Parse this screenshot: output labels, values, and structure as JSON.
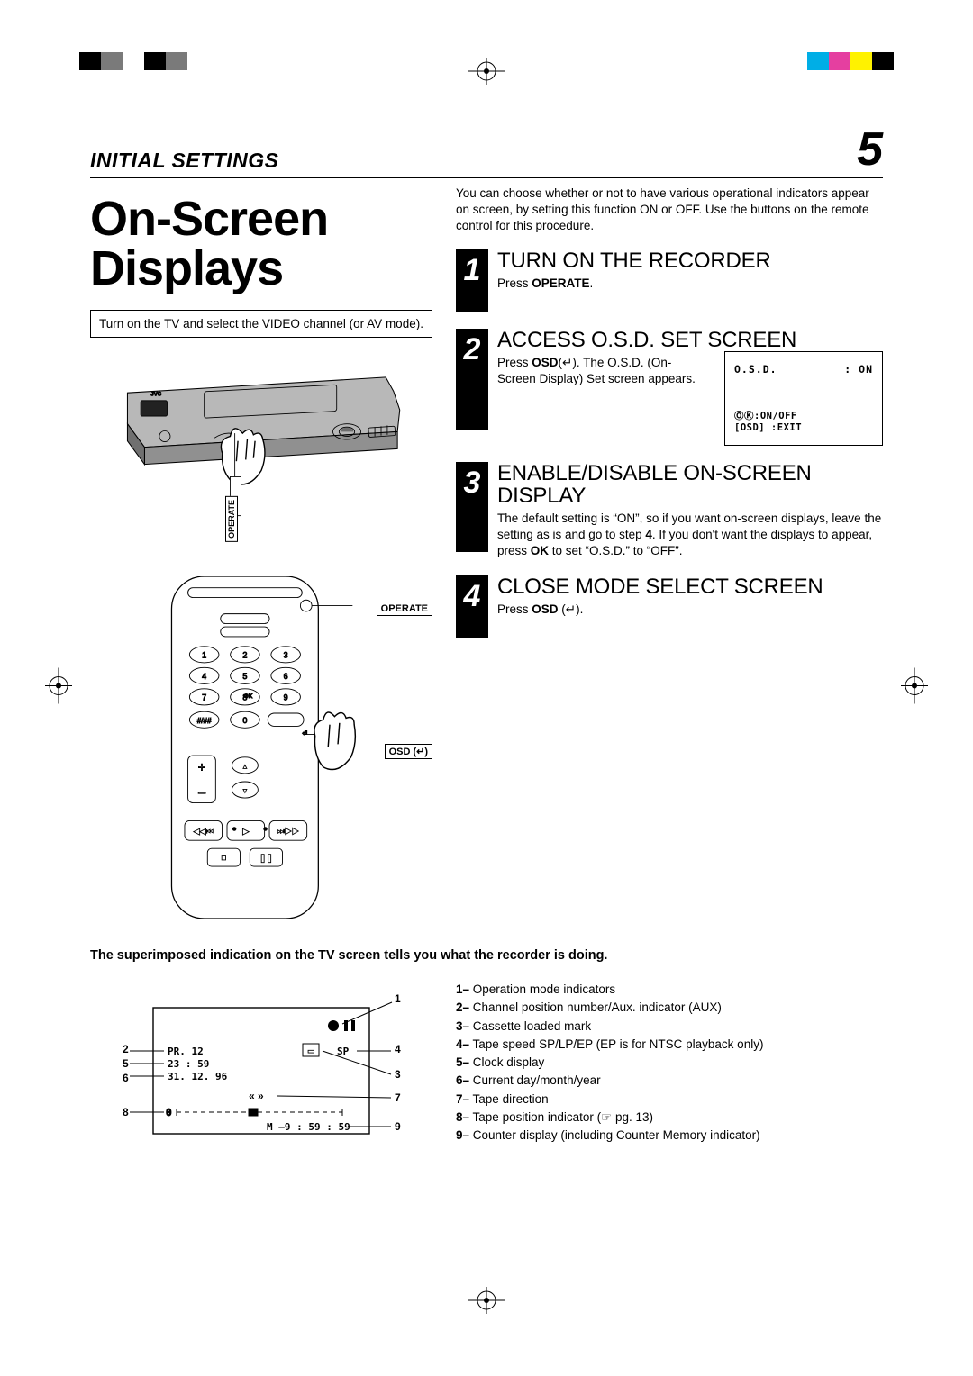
{
  "reg_colors_left": [
    "#000000",
    "#808080",
    "#ffffff",
    "#000000",
    "#808080"
  ],
  "reg_colors_right": [
    "#00aee6",
    "#e53fa0",
    "#fff200",
    "#000000"
  ],
  "header": {
    "title": "INITIAL SETTINGS",
    "page": "5"
  },
  "title": "On-Screen Displays",
  "box_note": "Turn on the TV and select the VIDEO channel (or AV mode).",
  "vcr_label_operate": "OPERATE",
  "remote_label_operate": "OPERATE",
  "remote_label_osd": "OSD (↵)",
  "intro": "You can choose whether or not to have various operational indicators appear on screen, by setting this function ON or OFF. Use the buttons on the remote control for this procedure.",
  "steps": [
    {
      "num": "1",
      "title": "TURN ON THE RECORDER",
      "text": "Press <b>OPERATE</b>."
    },
    {
      "num": "2",
      "title": "ACCESS O.S.D. SET SCREEN",
      "text": "Press <b>OSD</b>(↵). The O.S.D. (On-Screen Display) Set  screen appears."
    },
    {
      "num": "3",
      "title": "ENABLE/DISABLE ON-SCREEN DISPLAY",
      "text": "The default setting is “ON”, so if you want on-screen displays, leave the setting as is and go to step <b>4</b>. If you don't want the displays to appear, press <b>OK</b> to set “O.S.D.” to “OFF”."
    },
    {
      "num": "4",
      "title": "CLOSE MODE SELECT SCREEN",
      "text": "Press <b>OSD</b> (↵)."
    }
  ],
  "osd": {
    "label": "O.S.D.",
    "value": ": ON",
    "line1": "ⓄⓀ:ON/OFF",
    "line2": "[OSD] :EXIT"
  },
  "superimpose": "The superimposed indication on the TV screen tells you what the recorder is doing.",
  "legend": [
    {
      "n": "1",
      "t": "Operation mode indicators"
    },
    {
      "n": "2",
      "t": "Channel position number/Aux. indicator (AUX)"
    },
    {
      "n": "3",
      "t": "Cassette loaded mark"
    },
    {
      "n": "4",
      "t": "Tape speed SP/LP/EP (EP is for NTSC playback only)"
    },
    {
      "n": "5",
      "t": "Clock display"
    },
    {
      "n": "6",
      "t": "Current day/month/year"
    },
    {
      "n": "7",
      "t": "Tape direction"
    },
    {
      "n": "8",
      "t": "Tape position indicator (☞ pg. 13)"
    },
    {
      "n": "9",
      "t": "Counter display (including Counter Memory indicator)"
    }
  ],
  "demo": {
    "pr": "PR. 12",
    "vcr": "▭",
    "sp": "SP",
    "time": "23 : 59",
    "date": "31. 12. 96",
    "counter": "M –9 : 59 : 59"
  }
}
